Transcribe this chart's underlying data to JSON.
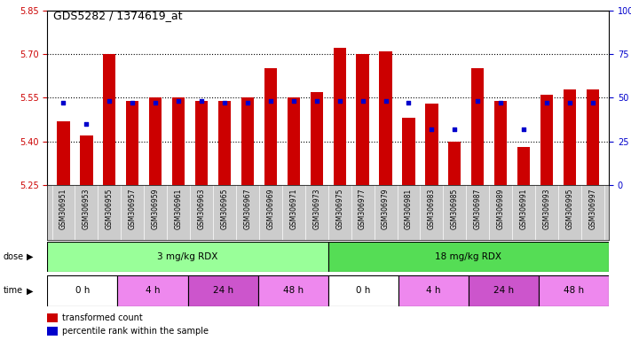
{
  "title": "GDS5282 / 1374619_at",
  "samples": [
    "GSM306951",
    "GSM306953",
    "GSM306955",
    "GSM306957",
    "GSM306959",
    "GSM306961",
    "GSM306963",
    "GSM306965",
    "GSM306967",
    "GSM306969",
    "GSM306971",
    "GSM306973",
    "GSM306975",
    "GSM306977",
    "GSM306979",
    "GSM306981",
    "GSM306983",
    "GSM306985",
    "GSM306987",
    "GSM306989",
    "GSM306991",
    "GSM306993",
    "GSM306995",
    "GSM306997"
  ],
  "transformed_count": [
    5.47,
    5.42,
    5.7,
    5.54,
    5.55,
    5.55,
    5.54,
    5.54,
    5.55,
    5.65,
    5.55,
    5.57,
    5.72,
    5.7,
    5.71,
    5.48,
    5.53,
    5.4,
    5.65,
    5.54,
    5.38,
    5.56,
    5.58,
    5.58
  ],
  "percentile_rank": [
    47,
    35,
    48,
    47,
    47,
    48,
    48,
    47,
    47,
    48,
    48,
    48,
    48,
    48,
    48,
    47,
    32,
    32,
    48,
    47,
    32,
    47,
    47,
    47
  ],
  "ylim_left": [
    5.25,
    5.85
  ],
  "ylim_right": [
    0,
    100
  ],
  "yticks_left": [
    5.25,
    5.4,
    5.55,
    5.7,
    5.85
  ],
  "yticks_right": [
    0,
    25,
    50,
    75,
    100
  ],
  "bar_color": "#cc0000",
  "dot_color": "#0000cc",
  "bar_bottom": 5.25,
  "dose_labels": [
    {
      "label": "3 mg/kg RDX",
      "start": 0,
      "end": 12,
      "color": "#99ff99"
    },
    {
      "label": "18 mg/kg RDX",
      "start": 12,
      "end": 24,
      "color": "#55dd55"
    }
  ],
  "time_labels": [
    {
      "label": "0 h",
      "start": 0,
      "end": 3,
      "color": "#ffffff"
    },
    {
      "label": "4 h",
      "start": 3,
      "end": 6,
      "color": "#ee88ee"
    },
    {
      "label": "24 h",
      "start": 6,
      "end": 9,
      "color": "#cc55cc"
    },
    {
      "label": "48 h",
      "start": 9,
      "end": 12,
      "color": "#ee88ee"
    },
    {
      "label": "0 h",
      "start": 12,
      "end": 15,
      "color": "#ffffff"
    },
    {
      "label": "4 h",
      "start": 15,
      "end": 18,
      "color": "#ee88ee"
    },
    {
      "label": "24 h",
      "start": 18,
      "end": 21,
      "color": "#cc55cc"
    },
    {
      "label": "48 h",
      "start": 21,
      "end": 24,
      "color": "#ee88ee"
    }
  ],
  "dose_arrow_label": "dose",
  "time_arrow_label": "time",
  "legend_items": [
    {
      "label": "transformed count",
      "color": "#cc0000"
    },
    {
      "label": "percentile rank within the sample",
      "color": "#0000cc"
    }
  ],
  "grid_color": "#000000",
  "axis_label_color_left": "#cc0000",
  "axis_label_color_right": "#0000cc",
  "background_color": "#ffffff",
  "plot_bg_color": "#ffffff",
  "xticklabel_bg": "#cccccc"
}
